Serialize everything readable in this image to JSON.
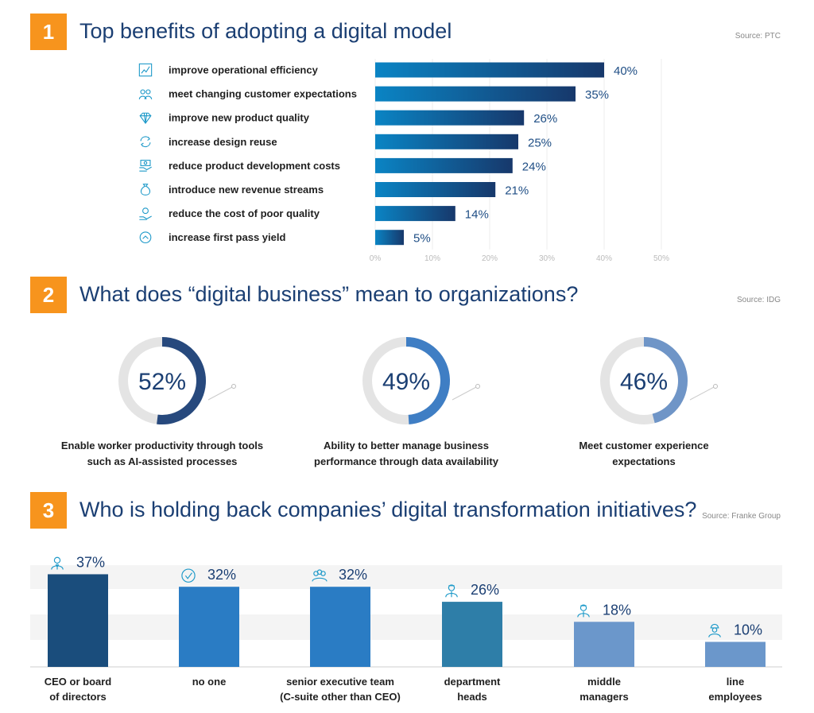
{
  "colors": {
    "badge": "#f7941d",
    "title": "#1b3f73",
    "bar_start": "#0a84c4",
    "bar_end": "#17386b",
    "donut_track": "#e4e4e4",
    "icon": "#1f9ac9"
  },
  "section1": {
    "number": "1",
    "title": "Top benefits of adopting a digital model",
    "source": "Source: PTC"
  },
  "section2": {
    "number": "2",
    "title": "What does “digital business” mean to organizations?",
    "source": "Source: IDG"
  },
  "section3": {
    "number": "3",
    "title": "Who is holding back companies’ digital transformation initiatives?",
    "source": "Source: Franke Group"
  },
  "chart_data": [
    {
      "type": "bar",
      "orientation": "horizontal",
      "categories": [
        "improve operational efficiency",
        "meet changing customer expectations",
        "improve new product quality",
        "increase design reuse",
        "reduce product development costs",
        "introduce new revenue streams",
        "reduce the cost of poor quality",
        "increase first pass yield"
      ],
      "values": [
        40,
        35,
        26,
        25,
        24,
        21,
        14,
        5
      ],
      "value_labels": [
        "40%",
        "35%",
        "26%",
        "25%",
        "24%",
        "21%",
        "14%",
        "5%"
      ],
      "xticks": [
        "0%",
        "10%",
        "20%",
        "30%",
        "40%",
        "50%"
      ],
      "xlim": [
        0,
        50
      ],
      "grid": true,
      "icons": [
        "line-chart-icon",
        "people-icon",
        "diamond-icon",
        "refresh-icon",
        "money-hand-icon",
        "money-bag-icon",
        "coin-hand-icon",
        "chevron-up-icon"
      ]
    },
    {
      "type": "pie",
      "style": "donut",
      "items": [
        {
          "value": 52,
          "label": "52%",
          "caption": [
            "Enable worker productivity through tools",
            "such as AI-assisted processes"
          ],
          "color": "#27497d",
          "icon": "ai-robot-icon"
        },
        {
          "value": 49,
          "label": "49%",
          "caption": [
            "Ability to better manage business",
            "performance through data availability"
          ],
          "color": "#3f7ec4",
          "icon": "analytics-person-icon"
        },
        {
          "value": 46,
          "label": "46%",
          "caption": [
            "Meet customer experience",
            "expectations"
          ],
          "color": "#6f95c7",
          "icon": "customer-chat-icon"
        }
      ]
    },
    {
      "type": "bar",
      "orientation": "vertical",
      "categories": [
        [
          "CEO or board",
          "of directors"
        ],
        [
          "no one"
        ],
        [
          "senior executive team",
          "(C-suite other than CEO)"
        ],
        [
          "department",
          "heads"
        ],
        [
          "middle",
          "managers"
        ],
        [
          "line",
          "employees"
        ]
      ],
      "values": [
        37,
        32,
        32,
        26,
        18,
        10
      ],
      "value_labels": [
        "37%",
        "32%",
        "32%",
        "26%",
        "18%",
        "10%"
      ],
      "colors": [
        "#1a4d7c",
        "#2a7cc4",
        "#2a7cc4",
        "#2e7ea8",
        "#6b97cb",
        "#6b97cb"
      ],
      "ylim": [
        0,
        40
      ],
      "icons": [
        "executive-icon",
        "checkmark-icon",
        "group-icon",
        "manager-icon",
        "manager-icon",
        "worker-icon"
      ]
    }
  ]
}
